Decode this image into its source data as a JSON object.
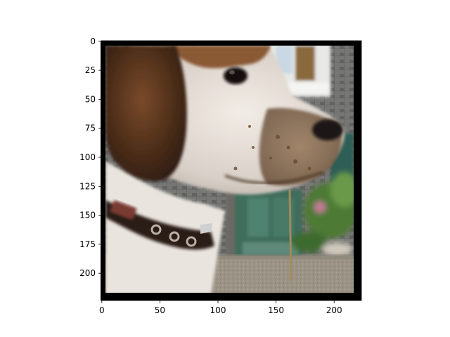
{
  "axes": {
    "x_ticks": [
      "0",
      "50",
      "100",
      "150",
      "200"
    ],
    "y_ticks": [
      "0",
      "25",
      "50",
      "75",
      "100",
      "125",
      "150",
      "175",
      "200"
    ],
    "x_tick_values": [
      0,
      50,
      100,
      150,
      200
    ],
    "y_tick_values": [
      0,
      25,
      50,
      75,
      100,
      125,
      150,
      175,
      200
    ],
    "x_range": [
      -0.5,
      223.5
    ],
    "y_range": [
      -0.5,
      223.5
    ],
    "y_direction": "top-down"
  },
  "image": {
    "subject": "beagle-dog-profile",
    "collar_color": "#2a1c18",
    "background_wall_color": "#6d6e6c",
    "door_color": "#3f6d5c",
    "ground_color": "#9a9384",
    "border_color": "#000000"
  }
}
